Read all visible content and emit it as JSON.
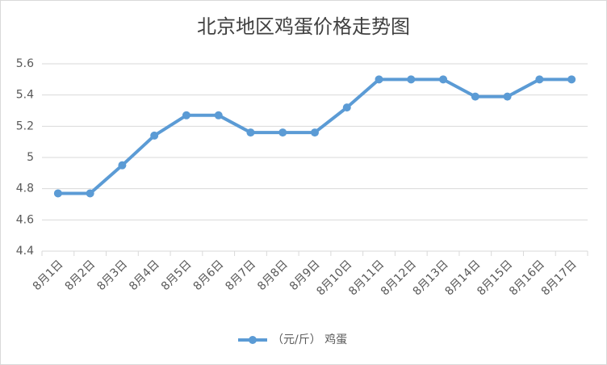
{
  "chart_data": {
    "type": "line",
    "title": "北京地区鸡蛋价格走势图",
    "categories": [
      "8月1日",
      "8月2日",
      "8月3日",
      "8月4日",
      "8月5日",
      "8月6日",
      "8月7日",
      "8月8日",
      "8月9日",
      "8月10日",
      "8月11日",
      "8月12日",
      "8月13日",
      "8月14日",
      "8月15日",
      "8月16日",
      "8月17日"
    ],
    "series": [
      {
        "name": "（元/斤） 鸡蛋",
        "color": "#5b9bd5",
        "values": [
          4.77,
          4.77,
          4.95,
          5.14,
          5.27,
          5.27,
          5.16,
          5.16,
          5.16,
          5.32,
          5.5,
          5.5,
          5.5,
          5.39,
          5.39,
          5.5,
          5.5
        ]
      }
    ],
    "ylim": [
      4.4,
      5.6
    ],
    "yticks": [
      4.4,
      4.6,
      4.8,
      5,
      5.2,
      5.4,
      5.6
    ],
    "grid": true,
    "legend": "bottom"
  }
}
